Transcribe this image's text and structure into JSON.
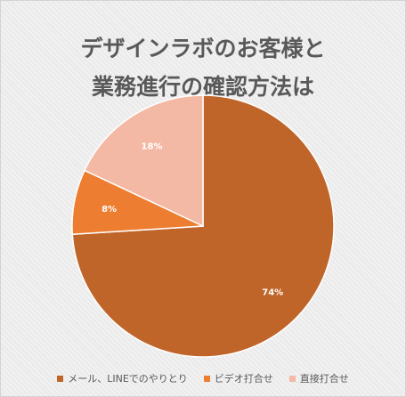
{
  "chart_data": {
    "type": "pie",
    "title_lines": [
      "デザインラボのお客様と",
      "業務進行の確認方法は"
    ],
    "categories": [
      "メール、LINEでのやりとり",
      "ビデオ打合せ",
      "直接打合せ"
    ],
    "values": [
      74,
      8,
      18
    ],
    "data_labels": [
      "74%",
      "8%",
      "18%"
    ],
    "colors": [
      "#c0652a",
      "#ed7d31",
      "#f4b9a5"
    ],
    "legend_position": "bottom"
  }
}
